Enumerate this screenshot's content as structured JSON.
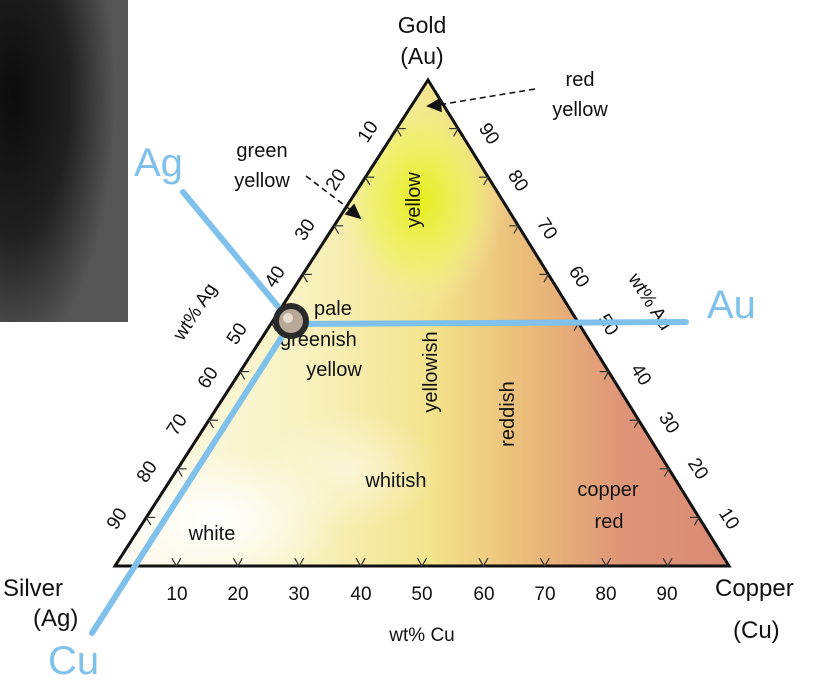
{
  "vertices": {
    "top": {
      "name": "Gold",
      "symbol": "(Au)"
    },
    "left": {
      "name": "Silver",
      "symbol": "(Ag)"
    },
    "right": {
      "name": "Copper",
      "symbol": "(Cu)"
    }
  },
  "axis_titles": {
    "ag": "wt% Ag",
    "au": "wt% Au",
    "cu": "wt% Cu"
  },
  "ticks": {
    "cu": [
      "10",
      "20",
      "30",
      "40",
      "50",
      "60",
      "70",
      "80",
      "90"
    ],
    "ag": [
      "10",
      "20",
      "30",
      "40",
      "50",
      "60",
      "70",
      "80",
      "90"
    ],
    "au": [
      "90",
      "80",
      "70",
      "60",
      "50",
      "40",
      "30",
      "20",
      "10"
    ]
  },
  "regions": {
    "white": "white",
    "whitish": "whitish",
    "yellow": "yellow",
    "yellowish": "yellowish",
    "reddish": "reddish",
    "pale_1": "pale",
    "pale_2": "greenish",
    "pale_3": "yellow",
    "copper_1": "copper",
    "copper_2": "red",
    "green_1": "green",
    "green_2": "yellow",
    "red_1": "red",
    "red_2": "yellow"
  },
  "overlay_labels": {
    "ag": "Ag",
    "au": "Au",
    "cu": "Cu"
  },
  "colors": {
    "overlay": "#7fc1ea",
    "outline": "#111111"
  }
}
